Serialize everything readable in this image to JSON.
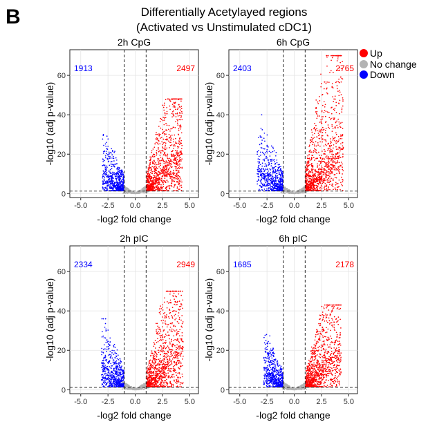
{
  "panel_letter": "B",
  "title_line1": "Differentially Acetylayed regions",
  "title_line2": "(Activated vs Unstimulated cDC1)",
  "legend": {
    "items": [
      {
        "label": "Up",
        "color": "#ff0000"
      },
      {
        "label": "No change",
        "color": "#b3b3b3"
      },
      {
        "label": "Down",
        "color": "#0000ff"
      }
    ]
  },
  "chart_data": [
    {
      "type": "scatter",
      "title": "2h CpG",
      "xlabel": "-log2 fold change",
      "ylabel": "-log10 (adj p-value)",
      "xlim": [
        -6.0,
        5.8
      ],
      "ylim": [
        -2,
        73
      ],
      "xticks": [
        "-5.0",
        "-2.5",
        "0.0",
        "2.5",
        "5.0"
      ],
      "xtick_values": [
        -5,
        -2.5,
        0,
        2.5,
        5
      ],
      "yticks": [
        "0",
        "20",
        "40",
        "60"
      ],
      "ytick_values": [
        0,
        20,
        40,
        60
      ],
      "fold_change_cutoffs": [
        -1,
        1
      ],
      "pvalue_cutoff": 1.3,
      "counts": {
        "down": "1913",
        "up": "2497"
      },
      "extent": {
        "down_xmin": -3.0,
        "down_ymax": 30,
        "up_xmax": 4.3,
        "up_ymax": 48
      }
    },
    {
      "type": "scatter",
      "title": "6h CpG",
      "xlabel": "-log2 fold change",
      "ylabel": "-log10 (adj p-value)",
      "xlim": [
        -6.0,
        5.8
      ],
      "ylim": [
        -2,
        73
      ],
      "xticks": [
        "-5.0",
        "-2.5",
        "0.0",
        "2.5",
        "5.0"
      ],
      "xtick_values": [
        -5,
        -2.5,
        0,
        2.5,
        5
      ],
      "yticks": [
        "0",
        "20",
        "40",
        "60"
      ],
      "ytick_values": [
        0,
        20,
        40,
        60
      ],
      "fold_change_cutoffs": [
        -1,
        1
      ],
      "pvalue_cutoff": 1.3,
      "counts": {
        "down": "2403",
        "up": "2765"
      },
      "extent": {
        "down_xmin": -3.4,
        "down_ymax": 40,
        "up_xmax": 4.5,
        "up_ymax": 70
      }
    },
    {
      "type": "scatter",
      "title": "2h pIC",
      "xlabel": "-log2 fold change",
      "ylabel": "-log10 (adj p-value)",
      "xlim": [
        -6.0,
        5.8
      ],
      "ylim": [
        -2,
        73
      ],
      "xticks": [
        "-5.0",
        "-2.5",
        "0.0",
        "2.5",
        "5.0"
      ],
      "xtick_values": [
        -5,
        -2.5,
        0,
        2.5,
        5
      ],
      "yticks": [
        "0",
        "20",
        "40",
        "60"
      ],
      "ytick_values": [
        0,
        20,
        40,
        60
      ],
      "fold_change_cutoffs": [
        -1,
        1
      ],
      "pvalue_cutoff": 1.3,
      "counts": {
        "down": "2334",
        "up": "2949"
      },
      "extent": {
        "down_xmin": -3.1,
        "down_ymax": 36,
        "up_xmax": 4.4,
        "up_ymax": 50
      }
    },
    {
      "type": "scatter",
      "title": "6h pIC",
      "xlabel": "-log2 fold change",
      "ylabel": "-log10 (adj p-value)",
      "xlim": [
        -6.0,
        5.8
      ],
      "ylim": [
        -2,
        73
      ],
      "xticks": [
        "-5.0",
        "-2.5",
        "0.0",
        "2.5",
        "5.0"
      ],
      "xtick_values": [
        -5,
        -2.5,
        0,
        2.5,
        5
      ],
      "yticks": [
        "0",
        "20",
        "40",
        "60"
      ],
      "ytick_values": [
        0,
        20,
        40,
        60
      ],
      "fold_change_cutoffs": [
        -1,
        1
      ],
      "pvalue_cutoff": 1.3,
      "counts": {
        "down": "1685",
        "up": "2178"
      },
      "extent": {
        "down_xmin": -2.8,
        "down_ymax": 28,
        "up_xmax": 4.3,
        "up_ymax": 43
      }
    }
  ]
}
